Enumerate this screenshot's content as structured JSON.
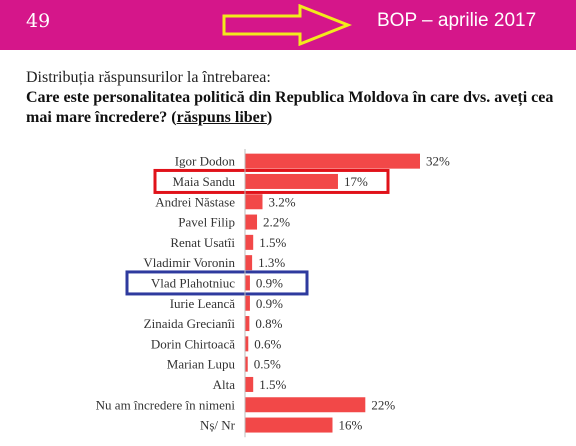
{
  "header": {
    "page_number": "49",
    "title": "BOP – aprilie 2017"
  },
  "question": {
    "intro": "Distribuția răspunsurilor la întrebarea:",
    "text": "Care este personalitatea politică din Republica Moldova în care dvs. aveți cea mai mare încredere?",
    "note": "răspuns liber"
  },
  "chart_data": {
    "type": "bar",
    "orientation": "horizontal",
    "categories": [
      "Igor Dodon",
      "Maia Sandu",
      "Andrei Năstase",
      "Pavel Filip",
      "Renat Usatîi",
      "Vladimir Voronin",
      "Vlad Plahotniuc",
      "Iurie Leancă",
      "Zinaida Grecianîi",
      "Dorin Chirtoacă",
      "Marian Lupu",
      "Alta",
      "Nu am încredere în nimeni",
      "Nș/ Nr"
    ],
    "values": [
      32,
      17,
      3.2,
      2.2,
      1.5,
      1.3,
      0.9,
      0.9,
      0.8,
      0.6,
      0.5,
      1.5,
      22,
      16
    ],
    "labels": [
      "32%",
      "17%",
      "3.2%",
      "2.2%",
      "1.5%",
      "1.3%",
      "0.9%",
      "0.9%",
      "0.8%",
      "0.6%",
      "0.5%",
      "1.5%",
      "22%",
      "16%"
    ],
    "highlight": [
      {
        "category": "Maia Sandu",
        "color": "#e0121a"
      },
      {
        "category": "Vlad Plahotniuc",
        "color": "#2e3a9e"
      }
    ],
    "bar_color": "#f24848",
    "xlim": [
      0,
      32
    ],
    "grid": false
  },
  "colors": {
    "banner": "#d5168a",
    "arrow": "#f2ea1c",
    "bar": "#f24848"
  },
  "icons": {
    "arrow": "right-arrow-outline-icon"
  }
}
